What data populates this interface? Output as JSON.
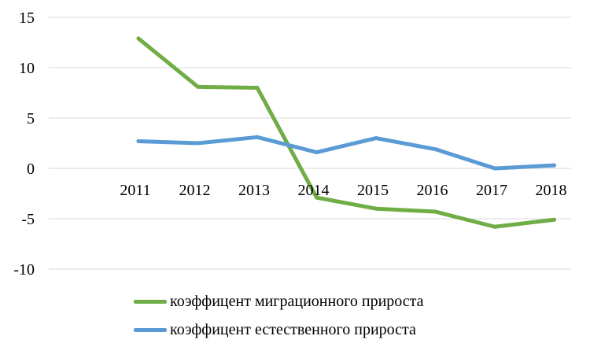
{
  "chart_data": {
    "type": "line",
    "categories": [
      "2011",
      "2012",
      "2013",
      "2014",
      "2015",
      "2016",
      "2017",
      "2018"
    ],
    "ylim": [
      -10,
      15
    ],
    "yticks": [
      -10,
      -5,
      0,
      5,
      10,
      15
    ],
    "ytick_labels": [
      "-10",
      "-5",
      "0",
      "5",
      "10",
      "15"
    ],
    "grid": true,
    "legend_position": "bottom",
    "series": [
      {
        "name": "коэффицент миграционного прироста",
        "color": "#70AD47",
        "values": [
          12.9,
          8.1,
          8.0,
          -2.9,
          -4.0,
          -4.3,
          -5.8,
          -5.1
        ]
      },
      {
        "name": "коэффицент естественного прироста",
        "color": "#5B9BD5",
        "values": [
          2.7,
          2.5,
          3.1,
          1.6,
          3.0,
          1.9,
          0.0,
          0.3
        ]
      }
    ]
  }
}
